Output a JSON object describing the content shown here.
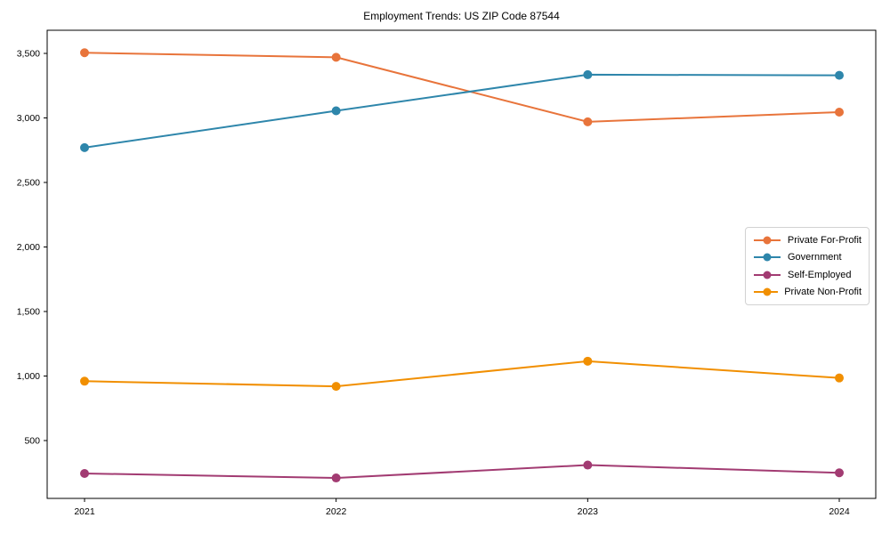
{
  "chart_data": {
    "type": "line",
    "title": "Employment Trends: US ZIP Code 87544",
    "x": [
      "2021",
      "2022",
      "2023",
      "2024"
    ],
    "series": [
      {
        "name": "Private For-Profit",
        "color": "#E8743B",
        "values": [
          3505,
          3470,
          2970,
          3045
        ]
      },
      {
        "name": "Government",
        "color": "#2E86AB",
        "values": [
          2770,
          3055,
          3335,
          3330
        ]
      },
      {
        "name": "Self-Employed",
        "color": "#A23B72",
        "values": [
          245,
          210,
          310,
          250
        ]
      },
      {
        "name": "Private Non-Profit",
        "color": "#F18F01",
        "values": [
          960,
          920,
          1115,
          985
        ]
      }
    ],
    "yticks": [
      500,
      1000,
      1500,
      2000,
      2500,
      3000,
      3500
    ],
    "ytick_labels": [
      "500",
      "1,000",
      "1,500",
      "2,000",
      "2,500",
      "3,000",
      "3,500"
    ],
    "ylim": [
      50,
      3680
    ],
    "xlabel": "",
    "ylabel": "",
    "grid": false,
    "marker": "circle",
    "legend_position": "center right",
    "axis_color": "#000000",
    "background_color": "#ffffff"
  }
}
